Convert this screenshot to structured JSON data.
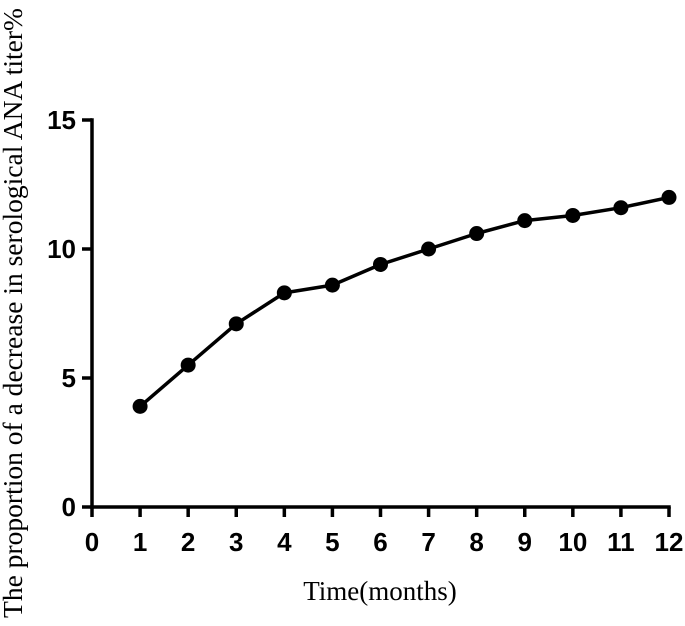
{
  "chart_data": {
    "type": "line",
    "title": "",
    "xlabel": "Time(months)",
    "ylabel": "The proportion of a decrease in serological ANA titer%",
    "xlim": [
      0,
      12
    ],
    "ylim": [
      0,
      15
    ],
    "x_ticks": [
      "0",
      "1",
      "2",
      "3",
      "4",
      "5",
      "6",
      "7",
      "8",
      "9",
      "10",
      "11",
      "12"
    ],
    "y_ticks": [
      "0",
      "5",
      "10",
      "15"
    ],
    "grid": false,
    "legend": "none",
    "series": [
      {
        "x": [
          1,
          2,
          3,
          4,
          5,
          6,
          7,
          8,
          9,
          10,
          11,
          12
        ],
        "values": [
          3.9,
          5.5,
          7.1,
          8.3,
          8.6,
          9.4,
          10.0,
          10.6,
          11.1,
          11.3,
          11.6,
          12.0
        ],
        "color": "#000000"
      }
    ]
  }
}
